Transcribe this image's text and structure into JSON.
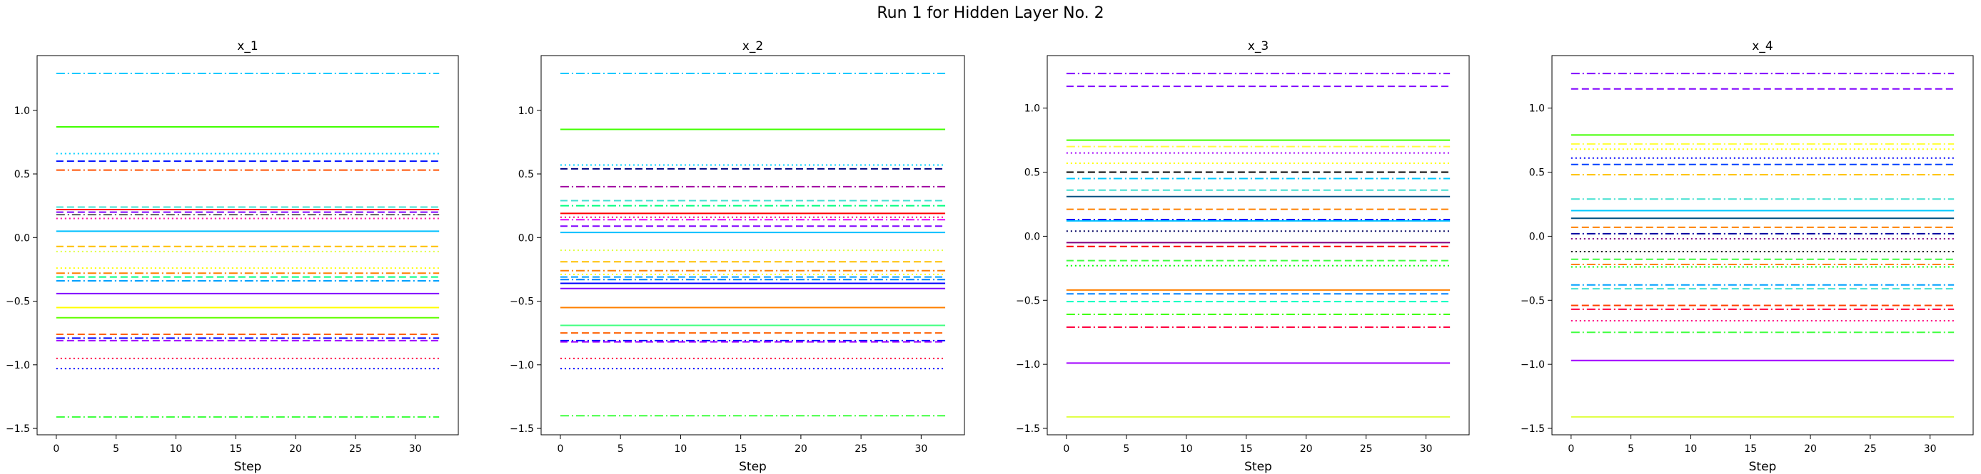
{
  "figure": {
    "title": "Run 1 for Hidden Layer No. 2"
  },
  "chart_data": [
    {
      "type": "line",
      "title": "x_1",
      "xlabel": "Step",
      "ylabel": "",
      "x_range": [
        0,
        32
      ],
      "xlim": [
        -1.6,
        33.6
      ],
      "ylim": [
        -1.55,
        1.43
      ],
      "xticks": [
        0,
        5,
        10,
        15,
        20,
        25,
        30
      ],
      "yticks": [
        -1.5,
        -1.0,
        -0.5,
        0.0,
        0.5,
        1.0
      ],
      "grid": false,
      "series": [
        {
          "y": 1.29,
          "color": "#00c8ff",
          "style": "dashdot"
        },
        {
          "y": 0.87,
          "color": "#40ff00",
          "style": "solid"
        },
        {
          "y": 0.66,
          "color": "#00d0ff",
          "style": "dotted"
        },
        {
          "y": 0.6,
          "color": "#0010ff",
          "style": "dashed"
        },
        {
          "y": 0.53,
          "color": "#ff5000",
          "style": "dashdot"
        },
        {
          "y": 0.24,
          "color": "#40e0d0",
          "style": "dashed"
        },
        {
          "y": 0.22,
          "color": "#ff0000",
          "style": "solid"
        },
        {
          "y": 0.2,
          "color": "#8000ff",
          "style": "dashed"
        },
        {
          "y": 0.18,
          "color": "#606060",
          "style": "dashdot"
        },
        {
          "y": 0.15,
          "color": "#ff00a0",
          "style": "dotted"
        },
        {
          "y": 0.05,
          "color": "#00c0ff",
          "style": "solid"
        },
        {
          "y": -0.07,
          "color": "#ffc000",
          "style": "dashed"
        },
        {
          "y": -0.11,
          "color": "#e0ff40",
          "style": "dotted"
        },
        {
          "y": -0.24,
          "color": "#ffff00",
          "style": "dotted"
        },
        {
          "y": -0.28,
          "color": "#ff8000",
          "style": "dashdot"
        },
        {
          "y": -0.31,
          "color": "#00ff80",
          "style": "dashed"
        },
        {
          "y": -0.34,
          "color": "#00a0ff",
          "style": "dashdot"
        },
        {
          "y": -0.44,
          "color": "#8000ff",
          "style": "solid"
        },
        {
          "y": -0.55,
          "color": "#ffff00",
          "style": "solid"
        },
        {
          "y": -0.63,
          "color": "#60ff00",
          "style": "solid"
        },
        {
          "y": -0.76,
          "color": "#ff6000",
          "style": "dashed"
        },
        {
          "y": -0.79,
          "color": "#0000ff",
          "style": "dashdot"
        },
        {
          "y": -0.81,
          "color": "#a000ff",
          "style": "dashed"
        },
        {
          "y": -0.95,
          "color": "#ff0040",
          "style": "dotted"
        },
        {
          "y": -1.03,
          "color": "#0000ff",
          "style": "dotted"
        },
        {
          "y": -1.41,
          "color": "#40ff40",
          "style": "dashdot"
        }
      ]
    },
    {
      "type": "line",
      "title": "x_2",
      "xlabel": "Step",
      "ylabel": "",
      "x_range": [
        0,
        32
      ],
      "xlim": [
        -1.6,
        33.6
      ],
      "ylim": [
        -1.55,
        1.43
      ],
      "xticks": [
        0,
        5,
        10,
        15,
        20,
        25,
        30
      ],
      "yticks": [
        -1.5,
        -1.0,
        -0.5,
        0.0,
        0.5,
        1.0
      ],
      "grid": false,
      "series": [
        {
          "y": 1.29,
          "color": "#00c8ff",
          "style": "dashdot"
        },
        {
          "y": 0.85,
          "color": "#40ff00",
          "style": "solid"
        },
        {
          "y": 0.57,
          "color": "#00d0ff",
          "style": "dotted"
        },
        {
          "y": 0.54,
          "color": "#000080",
          "style": "dashed"
        },
        {
          "y": 0.4,
          "color": "#a000a0",
          "style": "dashdot"
        },
        {
          "y": 0.29,
          "color": "#40e0d0",
          "style": "dashed"
        },
        {
          "y": 0.25,
          "color": "#00ff80",
          "style": "dashdot"
        },
        {
          "y": 0.19,
          "color": "#ff0000",
          "style": "solid"
        },
        {
          "y": 0.16,
          "color": "#ff0080",
          "style": "dotted"
        },
        {
          "y": 0.14,
          "color": "#e000ff",
          "style": "dashdot"
        },
        {
          "y": 0.09,
          "color": "#8000ff",
          "style": "dashed"
        },
        {
          "y": 0.04,
          "color": "#00c0ff",
          "style": "solid"
        },
        {
          "y": -0.1,
          "color": "#e0ff40",
          "style": "dotted"
        },
        {
          "y": -0.19,
          "color": "#ffc000",
          "style": "dashed"
        },
        {
          "y": -0.26,
          "color": "#ff8000",
          "style": "dashdot"
        },
        {
          "y": -0.29,
          "color": "#ffff00",
          "style": "dotted"
        },
        {
          "y": -0.31,
          "color": "#00a0ff",
          "style": "dashed"
        },
        {
          "y": -0.33,
          "color": "#0080ff",
          "style": "dashdot"
        },
        {
          "y": -0.36,
          "color": "#0000ff",
          "style": "solid"
        },
        {
          "y": -0.4,
          "color": "#8000ff",
          "style": "solid"
        },
        {
          "y": -0.55,
          "color": "#ff8000",
          "style": "solid"
        },
        {
          "y": -0.69,
          "color": "#40ff80",
          "style": "solid"
        },
        {
          "y": -0.75,
          "color": "#ff6000",
          "style": "dashed"
        },
        {
          "y": -0.81,
          "color": "#0000ff",
          "style": "dashdot"
        },
        {
          "y": -0.82,
          "color": "#a000ff",
          "style": "dashed"
        },
        {
          "y": -0.95,
          "color": "#ff0040",
          "style": "dotted"
        },
        {
          "y": -1.03,
          "color": "#0000ff",
          "style": "dotted"
        },
        {
          "y": -1.4,
          "color": "#40ff40",
          "style": "dashdot"
        }
      ]
    },
    {
      "type": "line",
      "title": "x_3",
      "xlabel": "Step",
      "ylabel": "",
      "x_range": [
        0,
        32
      ],
      "xlim": [
        -1.6,
        33.6
      ],
      "ylim": [
        -1.55,
        1.41
      ],
      "xticks": [
        0,
        5,
        10,
        15,
        20,
        25,
        30
      ],
      "yticks": [
        -1.5,
        -1.0,
        -0.5,
        0.0,
        0.5,
        1.0
      ],
      "grid": false,
      "series": [
        {
          "y": 1.27,
          "color": "#8000ff",
          "style": "dashdot"
        },
        {
          "y": 1.17,
          "color": "#8000ff",
          "style": "dashed"
        },
        {
          "y": 0.75,
          "color": "#40ff00",
          "style": "solid"
        },
        {
          "y": 0.7,
          "color": "#ffff40",
          "style": "dashdot"
        },
        {
          "y": 0.65,
          "color": "#a000ff",
          "style": "dotted"
        },
        {
          "y": 0.57,
          "color": "#ffff00",
          "style": "dotted"
        },
        {
          "y": 0.5,
          "color": "#000000",
          "style": "dashed"
        },
        {
          "y": 0.45,
          "color": "#00c8ff",
          "style": "dashdot"
        },
        {
          "y": 0.36,
          "color": "#40e0d0",
          "style": "dashed"
        },
        {
          "y": 0.31,
          "color": "#005080",
          "style": "solid"
        },
        {
          "y": 0.21,
          "color": "#ff8000",
          "style": "dashed"
        },
        {
          "y": 0.13,
          "color": "#0000ff",
          "style": "dashdot"
        },
        {
          "y": 0.12,
          "color": "#00c0ff",
          "style": "solid"
        },
        {
          "y": 0.04,
          "color": "#000060",
          "style": "dotted"
        },
        {
          "y": -0.05,
          "color": "#800080",
          "style": "solid"
        },
        {
          "y": -0.08,
          "color": "#ff0000",
          "style": "dashed"
        },
        {
          "y": -0.19,
          "color": "#40ff40",
          "style": "dashed"
        },
        {
          "y": -0.23,
          "color": "#00ff00",
          "style": "dotted"
        },
        {
          "y": -0.42,
          "color": "#ff8000",
          "style": "solid"
        },
        {
          "y": -0.45,
          "color": "#0080ff",
          "style": "dashed"
        },
        {
          "y": -0.51,
          "color": "#00ffc0",
          "style": "dashed"
        },
        {
          "y": -0.61,
          "color": "#40ff00",
          "style": "dashdot"
        },
        {
          "y": -0.71,
          "color": "#ff0040",
          "style": "dashdot"
        },
        {
          "y": -0.99,
          "color": "#a000ff",
          "style": "solid"
        },
        {
          "y": -1.41,
          "color": "#e0ff40",
          "style": "solid"
        }
      ]
    },
    {
      "type": "line",
      "title": "x_4",
      "xlabel": "Step",
      "ylabel": "",
      "x_range": [
        0,
        32
      ],
      "xlim": [
        -1.6,
        33.6
      ],
      "ylim": [
        -1.55,
        1.41
      ],
      "xticks": [
        0,
        5,
        10,
        15,
        20,
        25,
        30
      ],
      "yticks": [
        -1.5,
        -1.0,
        -0.5,
        0.0,
        0.5,
        1.0
      ],
      "grid": false,
      "series": [
        {
          "y": 1.27,
          "color": "#8000ff",
          "style": "dashdot"
        },
        {
          "y": 1.15,
          "color": "#8000ff",
          "style": "dashed"
        },
        {
          "y": 0.79,
          "color": "#40ff00",
          "style": "solid"
        },
        {
          "y": 0.72,
          "color": "#ffff40",
          "style": "dashdot"
        },
        {
          "y": 0.68,
          "color": "#ffff00",
          "style": "dotted"
        },
        {
          "y": 0.61,
          "color": "#0000ff",
          "style": "dotted"
        },
        {
          "y": 0.56,
          "color": "#0040ff",
          "style": "dashed"
        },
        {
          "y": 0.48,
          "color": "#ffc000",
          "style": "dashdot"
        },
        {
          "y": 0.29,
          "color": "#40e0d0",
          "style": "dashdot"
        },
        {
          "y": 0.2,
          "color": "#00c8ff",
          "style": "solid"
        },
        {
          "y": 0.14,
          "color": "#005080",
          "style": "solid"
        },
        {
          "y": 0.07,
          "color": "#ff8000",
          "style": "dashed"
        },
        {
          "y": 0.02,
          "color": "#0000a0",
          "style": "dashdot"
        },
        {
          "y": -0.02,
          "color": "#800080",
          "style": "dotted"
        },
        {
          "y": -0.12,
          "color": "#000000",
          "style": "dotted"
        },
        {
          "y": -0.18,
          "color": "#40ff40",
          "style": "dashed"
        },
        {
          "y": -0.22,
          "color": "#ff8000",
          "style": "dashdot"
        },
        {
          "y": -0.24,
          "color": "#00ff00",
          "style": "dotted"
        },
        {
          "y": -0.38,
          "color": "#00a0ff",
          "style": "dashdot"
        },
        {
          "y": -0.41,
          "color": "#40e0d0",
          "style": "dashed"
        },
        {
          "y": -0.54,
          "color": "#ff4000",
          "style": "dashed"
        },
        {
          "y": -0.57,
          "color": "#ff0040",
          "style": "dashdot"
        },
        {
          "y": -0.66,
          "color": "#ff0080",
          "style": "dotted"
        },
        {
          "y": -0.75,
          "color": "#40ff40",
          "style": "dashdot"
        },
        {
          "y": -0.97,
          "color": "#a000ff",
          "style": "solid"
        },
        {
          "y": -1.41,
          "color": "#e0ff40",
          "style": "solid"
        }
      ]
    }
  ]
}
